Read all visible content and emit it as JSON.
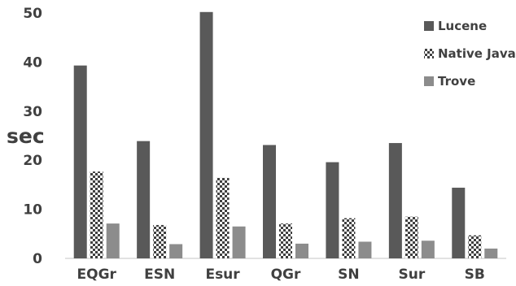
{
  "chart_data": {
    "type": "bar",
    "ylabel": "sec",
    "xlabel": "",
    "ylim": [
      0,
      50
    ],
    "yticks": [
      "0",
      "10",
      "20",
      "30",
      "40",
      "50"
    ],
    "grid": false,
    "legend_position": "top-right",
    "categories": [
      "EQGr",
      "ESN",
      "Esur",
      "QGr",
      "SN",
      "Sur",
      "SB"
    ],
    "series": [
      {
        "name": "Lucene",
        "color": "#595959",
        "pattern": "solid",
        "values": [
          39.3,
          23.9,
          50.2,
          23.1,
          19.6,
          23.5,
          14.4
        ]
      },
      {
        "name": "Native Java",
        "color": "#404040",
        "pattern": "checker",
        "values": [
          17.7,
          6.8,
          16.4,
          7.1,
          8.2,
          8.5,
          4.7
        ]
      },
      {
        "name": "Trove",
        "color": "#8c8c8c",
        "pattern": "solid",
        "values": [
          7.1,
          2.9,
          6.5,
          3.0,
          3.4,
          3.6,
          2.0
        ]
      }
    ]
  }
}
